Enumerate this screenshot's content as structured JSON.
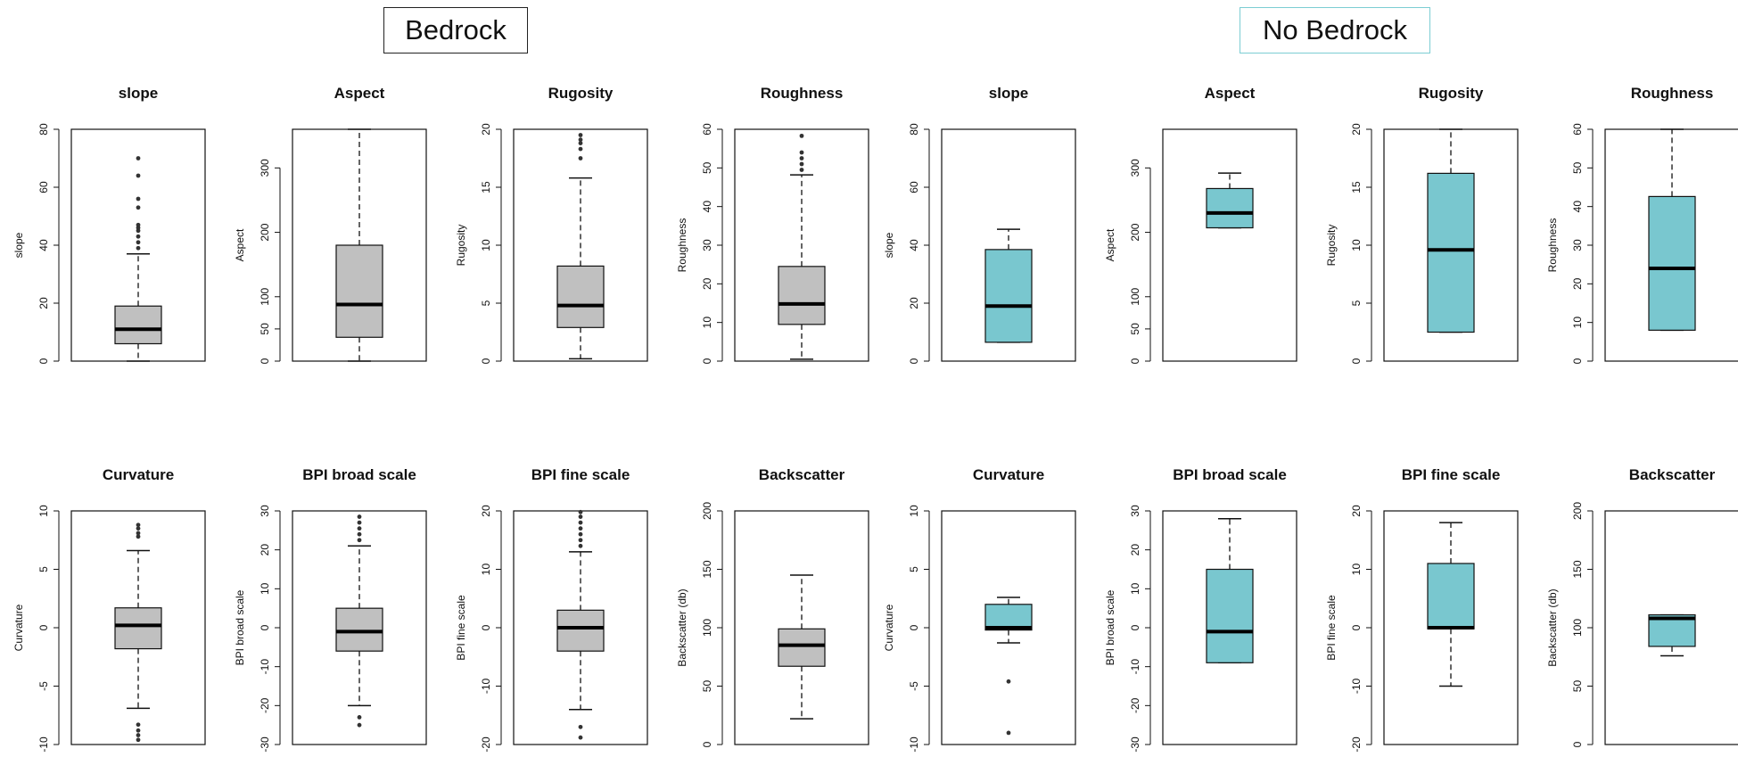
{
  "groups": {
    "bedrock": {
      "label": "Bedrock",
      "fill": "#c0c0c0"
    },
    "no_bedrock": {
      "label": "No Bedrock",
      "fill": "#79c7cf"
    }
  },
  "chart_data": [
    {
      "type": "box",
      "group": "bedrock",
      "title": "slope",
      "ylabel": "slope",
      "ylim": [
        0,
        80
      ],
      "yticks": [
        0,
        20,
        40,
        60,
        80
      ],
      "box": {
        "whisker_low": 0,
        "q1": 6,
        "median": 11,
        "q3": 19,
        "whisker_high": 37
      },
      "outliers": [
        39,
        41,
        43,
        45,
        46,
        47,
        53,
        56,
        64,
        70
      ]
    },
    {
      "type": "box",
      "group": "bedrock",
      "title": "Aspect",
      "ylabel": "Aspect",
      "ylim": [
        0,
        360
      ],
      "yticks": [
        0,
        50,
        100,
        200,
        300
      ],
      "box": {
        "whisker_low": 0,
        "q1": 37,
        "median": 88,
        "q3": 180,
        "whisker_high": 360
      },
      "outliers": []
    },
    {
      "type": "box",
      "group": "bedrock",
      "title": "Rugosity",
      "ylabel": "Rugosity",
      "ylim": [
        0,
        20
      ],
      "yticks": [
        0,
        5,
        10,
        15,
        20
      ],
      "box": {
        "whisker_low": 0.2,
        "q1": 2.9,
        "median": 4.8,
        "q3": 8.2,
        "whisker_high": 15.8
      },
      "outliers": [
        17.5,
        18.3,
        18.8,
        19.1,
        19.5
      ]
    },
    {
      "type": "box",
      "group": "bedrock",
      "title": "Roughness",
      "ylabel": "Roughness",
      "ylim": [
        0,
        60
      ],
      "yticks": [
        0,
        10,
        20,
        30,
        40,
        50,
        60
      ],
      "box": {
        "whisker_low": 0.5,
        "q1": 9.5,
        "median": 14.8,
        "q3": 24.5,
        "whisker_high": 48.2
      },
      "outliers": [
        49.5,
        51,
        52.5,
        54,
        58.3
      ]
    },
    {
      "type": "box",
      "group": "no_bedrock",
      "title": "slope",
      "ylabel": "slope",
      "ylim": [
        0,
        80
      ],
      "yticks": [
        0,
        20,
        40,
        60,
        80
      ],
      "box": {
        "whisker_low": 6.5,
        "q1": 6.5,
        "median": 19,
        "q3": 38.5,
        "whisker_high": 45.5
      },
      "outliers": []
    },
    {
      "type": "box",
      "group": "no_bedrock",
      "title": "Aspect",
      "ylabel": "Aspect",
      "ylim": [
        0,
        360
      ],
      "yticks": [
        0,
        50,
        100,
        200,
        300
      ],
      "box": {
        "whisker_low": 207,
        "q1": 207,
        "median": 230,
        "q3": 268,
        "whisker_high": 292
      },
      "outliers": []
    },
    {
      "type": "box",
      "group": "no_bedrock",
      "title": "Rugosity",
      "ylabel": "Rugosity",
      "ylim": [
        0,
        20
      ],
      "yticks": [
        0,
        5,
        10,
        15,
        20
      ],
      "box": {
        "whisker_low": 2.5,
        "q1": 2.5,
        "median": 9.6,
        "q3": 16.2,
        "whisker_high": 20
      },
      "outliers": []
    },
    {
      "type": "box",
      "group": "no_bedrock",
      "title": "Roughness",
      "ylabel": "Roughness",
      "ylim": [
        0,
        60
      ],
      "yticks": [
        0,
        10,
        20,
        30,
        40,
        50,
        60
      ],
      "box": {
        "whisker_low": 8,
        "q1": 8,
        "median": 24,
        "q3": 42.6,
        "whisker_high": 60
      },
      "outliers": []
    },
    {
      "type": "box",
      "group": "bedrock",
      "title": "Curvature",
      "ylabel": "Curvature",
      "ylim": [
        -10,
        10
      ],
      "yticks": [
        -10,
        -5,
        0,
        5,
        10
      ],
      "box": {
        "whisker_low": -6.9,
        "q1": -1.8,
        "median": 0.2,
        "q3": 1.7,
        "whisker_high": 6.6
      },
      "outliers": [
        7.8,
        8.1,
        8.5,
        8.8,
        -8.3,
        -8.8,
        -9.2,
        -9.6
      ]
    },
    {
      "type": "box",
      "group": "bedrock",
      "title": "BPI broad scale",
      "ylabel": "BPI broad scale",
      "ylim": [
        -30,
        30
      ],
      "yticks": [
        -30,
        -20,
        -10,
        0,
        10,
        20,
        30
      ],
      "box": {
        "whisker_low": -20,
        "q1": -6,
        "median": -1,
        "q3": 5,
        "whisker_high": 21
      },
      "outliers": [
        22.5,
        24,
        25.5,
        27,
        28.5,
        -23,
        -25
      ]
    },
    {
      "type": "box",
      "group": "bedrock",
      "title": "BPI fine scale",
      "ylabel": "BPI fine scale",
      "ylim": [
        -20,
        20
      ],
      "yticks": [
        -20,
        -10,
        0,
        10,
        20
      ],
      "box": {
        "whisker_low": -14,
        "q1": -4,
        "median": 0,
        "q3": 3,
        "whisker_high": 13
      },
      "outliers": [
        14,
        15,
        16,
        17,
        18,
        19,
        19.8,
        -17,
        -18.8
      ]
    },
    {
      "type": "box",
      "group": "bedrock",
      "title": "Backscatter",
      "ylabel": "Backscatter (db)",
      "ylim": [
        0,
        200
      ],
      "yticks": [
        0,
        50,
        100,
        150,
        200
      ],
      "box": {
        "whisker_low": 22,
        "q1": 67,
        "median": 85,
        "q3": 99,
        "whisker_high": 145
      },
      "outliers": []
    },
    {
      "type": "box",
      "group": "no_bedrock",
      "title": "Curvature",
      "ylabel": "Curvature",
      "ylim": [
        -10,
        10
      ],
      "yticks": [
        -10,
        -5,
        0,
        5,
        10
      ],
      "box": {
        "whisker_low": -1.3,
        "q1": -0.2,
        "median": 0,
        "q3": 2,
        "whisker_high": 2.6
      },
      "outliers": [
        -4.6,
        -9
      ]
    },
    {
      "type": "box",
      "group": "no_bedrock",
      "title": "BPI broad scale",
      "ylabel": "BPI broad scale",
      "ylim": [
        -30,
        30
      ],
      "yticks": [
        -30,
        -20,
        -10,
        0,
        10,
        20,
        30
      ],
      "box": {
        "whisker_low": -9,
        "q1": -9,
        "median": -1,
        "q3": 15,
        "whisker_high": 28
      },
      "outliers": []
    },
    {
      "type": "box",
      "group": "no_bedrock",
      "title": "BPI fine scale",
      "ylabel": "BPI fine scale",
      "ylim": [
        -20,
        20
      ],
      "yticks": [
        -20,
        -10,
        0,
        10,
        20
      ],
      "box": {
        "whisker_low": -10,
        "q1": -0.2,
        "median": 0,
        "q3": 11,
        "whisker_high": 18
      },
      "outliers": []
    },
    {
      "type": "box",
      "group": "no_bedrock",
      "title": "Backscatter",
      "ylabel": "Backscatter (db)",
      "ylim": [
        0,
        200
      ],
      "yticks": [
        0,
        50,
        100,
        150,
        200
      ],
      "box": {
        "whisker_low": 76,
        "q1": 84,
        "median": 108,
        "q3": 111,
        "whisker_high": 111
      },
      "outliers": []
    }
  ]
}
